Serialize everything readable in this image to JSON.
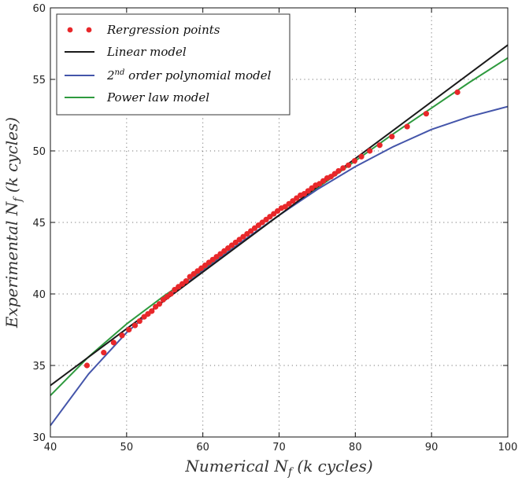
{
  "chart_data": {
    "type": "line",
    "title": "",
    "xlabel": "Numerical N_f (k cycles)",
    "ylabel": "Experimental N_f (k cycles)",
    "xlabel_parts": {
      "prefix": "Numerical ",
      "var": "N",
      "sub": "f",
      "suffix": "  (k cycles)"
    },
    "ylabel_parts": {
      "prefix": "Experimental ",
      "var": "N",
      "sub": "f",
      "suffix": "  (k cycles)"
    },
    "xlim": [
      40,
      100
    ],
    "ylim": [
      30,
      60
    ],
    "x_ticks": [
      40,
      50,
      60,
      70,
      80,
      90,
      100
    ],
    "y_ticks": [
      30,
      35,
      40,
      45,
      50,
      55,
      60
    ],
    "x_tick_labels": [
      "40",
      "50",
      "60",
      "70",
      "80",
      "90",
      "100"
    ],
    "y_tick_labels": [
      "30",
      "35",
      "40",
      "45",
      "50",
      "55",
      "60"
    ],
    "grid": true,
    "grid_style": "dotted",
    "legend_position": "top-left",
    "series": [
      {
        "name": "Rergression points",
        "kind": "scatter",
        "color": "#e8272a",
        "x": [
          44.8,
          47.0,
          48.3,
          49.4,
          50.3,
          51.1,
          51.7,
          52.3,
          52.8,
          53.3,
          53.8,
          54.3,
          54.8,
          55.3,
          55.8,
          56.3,
          56.8,
          57.3,
          57.8,
          58.3,
          58.8,
          59.3,
          59.8,
          60.3,
          60.8,
          61.3,
          61.8,
          62.3,
          62.8,
          63.3,
          63.8,
          64.3,
          64.8,
          65.3,
          65.8,
          66.3,
          66.8,
          67.3,
          67.8,
          68.3,
          68.8,
          69.3,
          69.8,
          70.3,
          70.8,
          71.3,
          71.8,
          72.3,
          72.8,
          73.3,
          73.8,
          74.3,
          74.8,
          75.3,
          75.8,
          76.3,
          76.8,
          77.3,
          77.8,
          78.4,
          79.1,
          79.9,
          80.8,
          81.9,
          83.2,
          84.8,
          86.8,
          89.3,
          93.4
        ],
        "y": [
          35.0,
          35.9,
          36.6,
          37.1,
          37.5,
          37.8,
          38.1,
          38.4,
          38.6,
          38.8,
          39.1,
          39.3,
          39.6,
          39.8,
          40.0,
          40.3,
          40.5,
          40.7,
          40.9,
          41.2,
          41.4,
          41.6,
          41.8,
          42.0,
          42.2,
          42.4,
          42.6,
          42.8,
          43.0,
          43.2,
          43.4,
          43.6,
          43.8,
          44.0,
          44.2,
          44.4,
          44.6,
          44.8,
          45.0,
          45.2,
          45.4,
          45.6,
          45.8,
          46.0,
          46.1,
          46.3,
          46.5,
          46.7,
          46.9,
          47.0,
          47.2,
          47.4,
          47.6,
          47.7,
          47.9,
          48.1,
          48.2,
          48.4,
          48.6,
          48.8,
          49.0,
          49.3,
          49.6,
          50.0,
          50.4,
          51.0,
          51.7,
          52.6,
          54.1
        ]
      },
      {
        "name": "Linear model",
        "kind": "line",
        "color": "#1a1a1a",
        "x": [
          40,
          100
        ],
        "y": [
          33.6,
          57.4
        ]
      },
      {
        "name": "2nd order polynomial model",
        "name_parts": {
          "number": "2",
          "sup": "nd",
          "rest": " order polynomial model"
        },
        "kind": "line",
        "color": "#4455aa",
        "x": [
          40,
          45,
          50,
          55,
          60,
          65,
          70,
          75,
          80,
          85,
          90,
          95,
          100
        ],
        "y": [
          30.8,
          34.4,
          37.3,
          39.6,
          41.6,
          43.6,
          45.5,
          47.3,
          48.9,
          50.3,
          51.5,
          52.4,
          53.1
        ]
      },
      {
        "name": "Power law model",
        "kind": "line",
        "color": "#2e9a3e",
        "x": [
          40,
          45,
          50,
          55,
          60,
          65,
          70,
          75,
          80,
          85,
          90,
          95,
          100
        ],
        "y": [
          32.9,
          35.6,
          37.9,
          39.9,
          41.7,
          43.6,
          45.5,
          47.4,
          49.3,
          51.2,
          53.0,
          54.8,
          56.5
        ]
      }
    ]
  }
}
